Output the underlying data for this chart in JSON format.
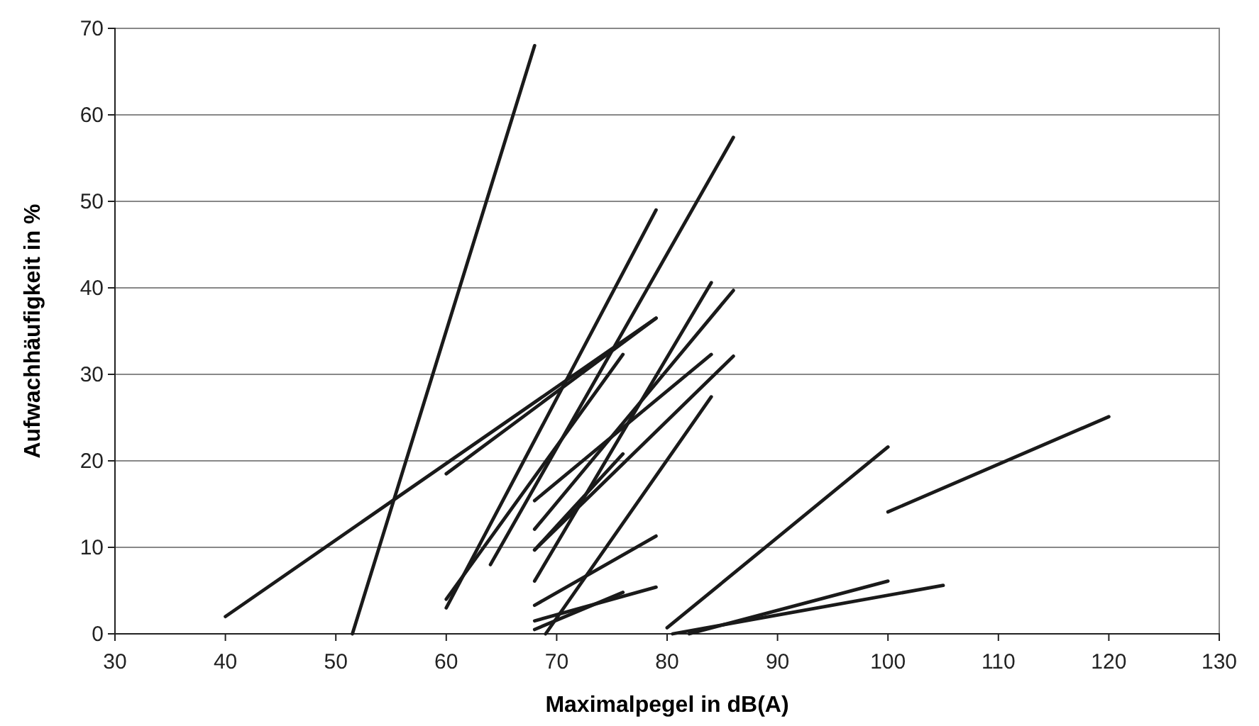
{
  "chart_data": {
    "type": "line",
    "xlabel": "Maximalpegel in dB(A)",
    "ylabel": "Aufwachhäufigkeit in %",
    "xlim": [
      30,
      130
    ],
    "ylim": [
      0,
      70
    ],
    "xticks": [
      30,
      40,
      50,
      60,
      70,
      80,
      90,
      100,
      110,
      120,
      130
    ],
    "yticks": [
      0,
      10,
      20,
      30,
      40,
      50,
      60,
      70
    ],
    "grid": "y",
    "marker": "none",
    "line_style": "solid",
    "series": [
      {
        "color": "#1a1a1a",
        "x": [
          40,
          79
        ],
        "values": [
          2,
          36.5
        ]
      },
      {
        "color": "#1a1a1a",
        "x": [
          60,
          79
        ],
        "values": [
          18.5,
          36.5
        ]
      },
      {
        "color": "#1a1a1a",
        "x": [
          51.5,
          68
        ],
        "values": [
          0,
          68
        ]
      },
      {
        "color": "#1a1a1a",
        "x": [
          60,
          76
        ],
        "values": [
          4,
          32.3
        ]
      },
      {
        "color": "#1a1a1a",
        "x": [
          60,
          79
        ],
        "values": [
          3,
          49
        ]
      },
      {
        "color": "#1a1a1a",
        "x": [
          64,
          86
        ],
        "values": [
          8,
          57.4
        ]
      },
      {
        "color": "#1a1a1a",
        "x": [
          68,
          84
        ],
        "values": [
          15.4,
          32.3
        ]
      },
      {
        "color": "#1a1a1a",
        "x": [
          68,
          86
        ],
        "values": [
          12.1,
          39.7
        ]
      },
      {
        "color": "#1a1a1a",
        "x": [
          68,
          76
        ],
        "values": [
          9.7,
          20.8
        ]
      },
      {
        "color": "#1a1a1a",
        "x": [
          68,
          86
        ],
        "values": [
          9.7,
          32.1
        ]
      },
      {
        "color": "#1a1a1a",
        "x": [
          68,
          84
        ],
        "values": [
          6.1,
          40.6
        ]
      },
      {
        "color": "#1a1a1a",
        "x": [
          68,
          79
        ],
        "values": [
          3.3,
          11.3
        ]
      },
      {
        "color": "#1a1a1a",
        "x": [
          68,
          79
        ],
        "values": [
          1.5,
          5.4
        ]
      },
      {
        "color": "#1a1a1a",
        "x": [
          68,
          76
        ],
        "values": [
          0.5,
          4.8
        ]
      },
      {
        "color": "#1a1a1a",
        "x": [
          69,
          84
        ],
        "values": [
          0,
          27.4
        ]
      },
      {
        "color": "#1a1a1a",
        "x": [
          80,
          100
        ],
        "values": [
          0.7,
          21.6
        ]
      },
      {
        "color": "#1a1a1a",
        "x": [
          82,
          100
        ],
        "values": [
          0,
          6.1
        ]
      },
      {
        "color": "#1a1a1a",
        "x": [
          80.5,
          105
        ],
        "values": [
          0,
          5.6
        ]
      },
      {
        "color": "#1a1a1a",
        "x": [
          100,
          120
        ],
        "values": [
          14.1,
          25.1
        ]
      }
    ]
  }
}
